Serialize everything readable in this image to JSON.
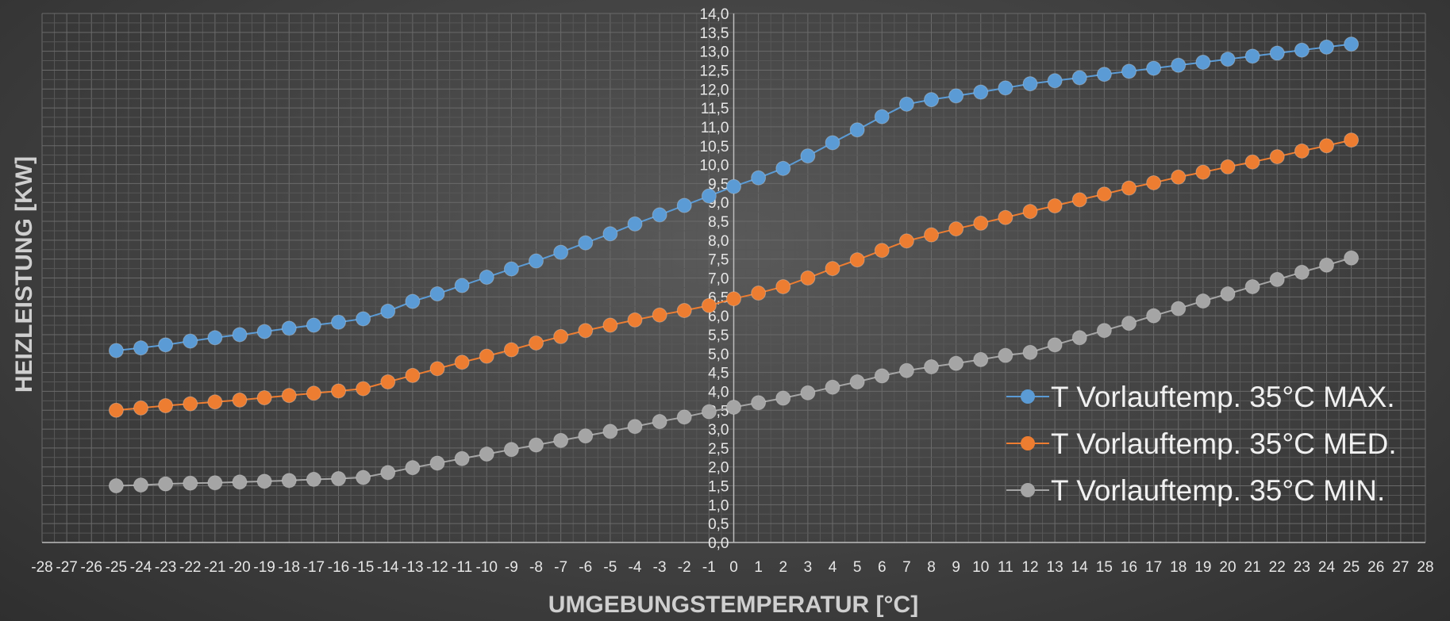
{
  "chart_data": {
    "type": "line",
    "title": "",
    "xlabel": "UMGEBUNGSTEMPERATUR [°C]",
    "ylabel": "HEIZLEISTUNG [KW]",
    "xlim": [
      -28,
      28
    ],
    "ylim": [
      0,
      14
    ],
    "x_ticks": [
      -28,
      -27,
      -26,
      -25,
      -24,
      -23,
      -22,
      -21,
      -20,
      -19,
      -18,
      -17,
      -16,
      -15,
      -14,
      -13,
      -12,
      -11,
      -10,
      -9,
      -8,
      -7,
      -6,
      -5,
      -4,
      -3,
      -2,
      -1,
      0,
      1,
      2,
      3,
      4,
      5,
      6,
      7,
      8,
      9,
      10,
      11,
      12,
      13,
      14,
      15,
      16,
      17,
      18,
      19,
      20,
      21,
      22,
      23,
      24,
      25,
      26,
      27,
      28
    ],
    "y_ticks": [
      "0,0",
      "0,5",
      "1,0",
      "1,5",
      "2,0",
      "2,5",
      "3,0",
      "3,5",
      "4,0",
      "4,5",
      "5,0",
      "5,5",
      "6,0",
      "6,5",
      "7,0",
      "7,5",
      "8,0",
      "8,5",
      "9,0",
      "9,5",
      "10,0",
      "10,5",
      "11,0",
      "11,5",
      "12,0",
      "12,5",
      "13,0",
      "13,5",
      "14,0"
    ],
    "grid": true,
    "legend_position": "bottom-right",
    "x": [
      -25,
      -24,
      -23,
      -22,
      -21,
      -20,
      -19,
      -18,
      -17,
      -16,
      -15,
      -14,
      -13,
      -12,
      -11,
      -10,
      -9,
      -8,
      -7,
      -6,
      -5,
      -4,
      -3,
      -2,
      -1,
      0,
      1,
      2,
      3,
      4,
      5,
      6,
      7,
      8,
      9,
      10,
      11,
      12,
      13,
      14,
      15,
      16,
      17,
      18,
      19,
      20,
      21,
      22,
      23,
      24,
      25
    ],
    "series": [
      {
        "name": "T Vorlauftemp. 35°C MAX.",
        "color": "#5b9bd5",
        "values": [
          5.08,
          5.15,
          5.23,
          5.33,
          5.42,
          5.5,
          5.58,
          5.67,
          5.75,
          5.83,
          5.92,
          6.12,
          6.38,
          6.58,
          6.8,
          7.02,
          7.24,
          7.45,
          7.68,
          7.93,
          8.17,
          8.43,
          8.67,
          8.92,
          9.17,
          9.42,
          9.65,
          9.9,
          10.23,
          10.58,
          10.92,
          11.27,
          11.6,
          11.72,
          11.82,
          11.92,
          12.03,
          12.14,
          12.22,
          12.3,
          12.39,
          12.47,
          12.55,
          12.63,
          12.71,
          12.79,
          12.87,
          12.95,
          13.03,
          13.11,
          13.19
        ]
      },
      {
        "name": "T Vorlauftemp. 35°C MED.",
        "color": "#ed7d31",
        "values": [
          3.5,
          3.56,
          3.62,
          3.67,
          3.72,
          3.77,
          3.83,
          3.89,
          3.95,
          4.01,
          4.07,
          4.25,
          4.42,
          4.6,
          4.77,
          4.93,
          5.1,
          5.28,
          5.45,
          5.61,
          5.75,
          5.89,
          6.02,
          6.14,
          6.27,
          6.45,
          6.6,
          6.77,
          7.0,
          7.25,
          7.48,
          7.73,
          7.98,
          8.14,
          8.3,
          8.45,
          8.6,
          8.76,
          8.91,
          9.07,
          9.22,
          9.38,
          9.52,
          9.67,
          9.8,
          9.94,
          10.07,
          10.21,
          10.36,
          10.5,
          10.65
        ]
      },
      {
        "name": "T Vorlauftemp. 35°C MIN.",
        "color": "#a5a5a5",
        "values": [
          1.5,
          1.52,
          1.55,
          1.57,
          1.58,
          1.6,
          1.62,
          1.64,
          1.67,
          1.69,
          1.72,
          1.85,
          1.98,
          2.1,
          2.22,
          2.34,
          2.46,
          2.58,
          2.7,
          2.82,
          2.94,
          3.07,
          3.2,
          3.32,
          3.46,
          3.58,
          3.7,
          3.82,
          3.96,
          4.11,
          4.25,
          4.41,
          4.55,
          4.65,
          4.74,
          4.84,
          4.95,
          5.03,
          5.23,
          5.42,
          5.61,
          5.8,
          6.0,
          6.19,
          6.39,
          6.58,
          6.77,
          6.96,
          7.15,
          7.34,
          7.53
        ]
      }
    ]
  }
}
